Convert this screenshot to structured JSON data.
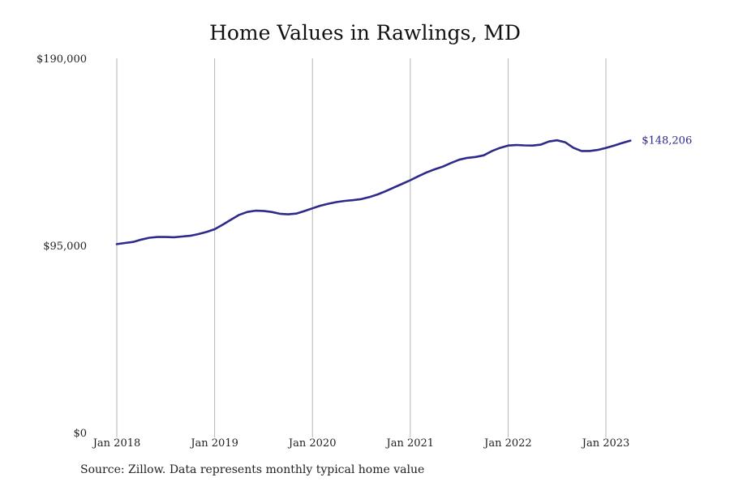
{
  "chart_data": {
    "type": "line",
    "title": "Home Values in Rawlings, MD",
    "source": "Source: Zillow. Data represents monthly typical home value",
    "xlabel": "",
    "ylabel": "",
    "ylim": [
      0,
      190000
    ],
    "y_ticks": [
      {
        "value": 0,
        "label": "$0"
      },
      {
        "value": 95000,
        "label": "$95,000"
      },
      {
        "value": 190000,
        "label": "$190,000"
      }
    ],
    "x_ticks": [
      {
        "value": 2018.0,
        "label": "Jan 2018"
      },
      {
        "value": 2019.0,
        "label": "Jan 2019"
      },
      {
        "value": 2020.0,
        "label": "Jan 2020"
      },
      {
        "value": 2021.0,
        "label": "Jan 2021"
      },
      {
        "value": 2022.0,
        "label": "Jan 2022"
      },
      {
        "value": 2023.0,
        "label": "Jan 2023"
      }
    ],
    "xlim": [
      2018.0,
      2023.92
    ],
    "grid": {
      "vertical": true,
      "horizontal": false
    },
    "line_color": "#2e2a8a",
    "end_label": "$148,206",
    "series": [
      {
        "x": [
          2018.0,
          2018.083,
          2018.167,
          2018.25,
          2018.333,
          2018.417,
          2018.5,
          2018.583,
          2018.667,
          2018.75,
          2018.833,
          2018.917,
          2019.0,
          2019.083,
          2019.167,
          2019.25,
          2019.333,
          2019.417,
          2019.5,
          2019.583,
          2019.667,
          2019.75,
          2019.833,
          2019.917,
          2020.0,
          2020.083,
          2020.167,
          2020.25,
          2020.333,
          2020.417,
          2020.5,
          2020.583,
          2020.667,
          2020.75,
          2020.833,
          2020.917,
          2021.0,
          2021.083,
          2021.167,
          2021.25,
          2021.333,
          2021.417,
          2021.5,
          2021.583,
          2021.667,
          2021.75,
          2021.833,
          2021.917,
          2022.0,
          2022.083,
          2022.167,
          2022.25,
          2022.333,
          2022.417,
          2022.5,
          2022.583,
          2022.667,
          2022.75,
          2022.833,
          2022.917,
          2023.0,
          2023.083,
          2023.167,
          2023.25,
          2023.333
        ],
        "values": [
          103800,
          104400,
          105000,
          106300,
          107300,
          107700,
          107700,
          107600,
          108000,
          108400,
          109300,
          110500,
          112000,
          114500,
          117200,
          119900,
          121500,
          122200,
          122100,
          121500,
          120500,
          120200,
          120600,
          122000,
          123500,
          125000,
          126100,
          127000,
          127600,
          128000,
          128600,
          129700,
          131200,
          133000,
          135000,
          137000,
          139000,
          141200,
          143300,
          145000,
          146500,
          148500,
          150300,
          151300,
          151800,
          152700,
          155000,
          156800,
          158100,
          158400,
          158200,
          158100,
          158600,
          160300,
          161000,
          159900,
          156900,
          155100,
          155100,
          155700,
          156800,
          158100,
          159500,
          160800,
          148206
        ]
      }
    ]
  }
}
